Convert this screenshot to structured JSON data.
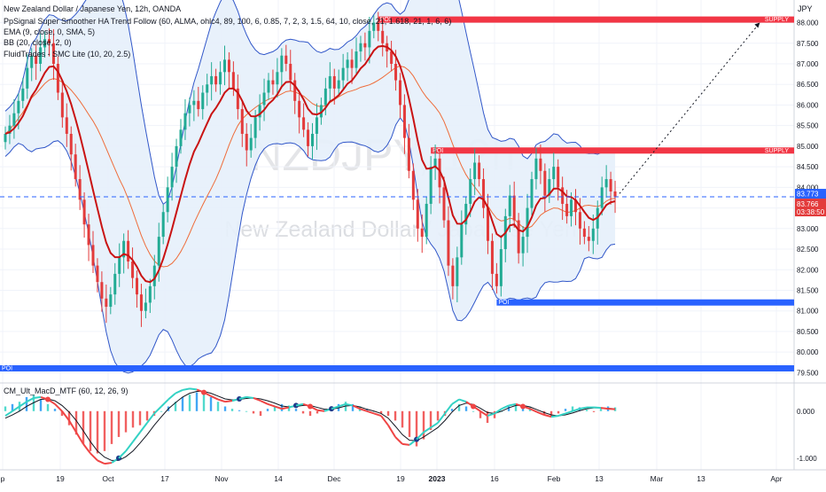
{
  "chart_data": {
    "type": "candlestick",
    "title": "New Zealand Dollar / Japanese Yen, 12h, OANDA",
    "watermark_symbol": "NZDJPY, 12h",
    "watermark_name": "New Zealand Dollar / Japanese Yen",
    "currency": "JPY",
    "indicators": [
      "PpSignal Super Smoother HA Trend Follow (60, ALMA, ohlc4, 89, 100, 6, 0.85, 7, 2, 3, 1.5, 64, 10, close, 21, 1.618, 21, 1, 6, 6)",
      "EMA (9, close, 0, SMA, 5)",
      "BB (20, close, 2, 0)",
      "FluidTrades - SMC Lite (10, 20, 2.5)"
    ],
    "price_axis_ticks": [
      88.0,
      87.5,
      87.0,
      86.5,
      86.0,
      85.5,
      85.0,
      84.5,
      84.0,
      83.5,
      83.0,
      82.5,
      82.0,
      81.5,
      81.0,
      80.5,
      80.0,
      79.5
    ],
    "price_axis_tick_labels": [
      "88.000",
      "87.500",
      "87.000",
      "86.500",
      "86.000",
      "85.500",
      "85.000",
      "84.500",
      "84.000",
      "83.500",
      "83.000",
      "82.500",
      "82.000",
      "81.500",
      "81.000",
      "80.500",
      "80.000",
      "79.500"
    ],
    "ylim": [
      79.25,
      88.55
    ],
    "date_axis_labels": [
      "p",
      "19",
      "Oct",
      "17",
      "Nov",
      "14",
      "Dec",
      "19",
      "2023",
      "16",
      "Feb",
      "13",
      "Mar",
      "13",
      "Apr"
    ],
    "last_price_label": "83.773",
    "current_price_label": "83.766",
    "countdown_label": "03:38:50",
    "zones": [
      {
        "label": "POI",
        "tag": "SUPPLY",
        "low": 88.05,
        "high": 88.15,
        "start_index": 85,
        "color": "#f23645"
      },
      {
        "label": "POI",
        "tag": "SUPPLY",
        "low": 84.85,
        "high": 84.97,
        "start_index": 97,
        "color": "#f23645"
      },
      {
        "label": "POI",
        "tag": "",
        "low": 81.15,
        "high": 81.28,
        "start_index": 112,
        "color": "#2962ff"
      },
      {
        "label": "POI",
        "tag": "",
        "low": 79.55,
        "high": 79.68,
        "start_index": 0,
        "color": "#2962ff"
      }
    ],
    "projection": {
      "from_index": 140,
      "from_price": 83.85,
      "to_index": 172,
      "to_price": 88.0
    },
    "ohlc_note": "values estimated from the chart",
    "closes": [
      85.3,
      85.5,
      85.8,
      86.1,
      86.4,
      86.9,
      87.2,
      87.0,
      87.4,
      87.6,
      87.5,
      87.0,
      86.3,
      85.7,
      85.3,
      84.8,
      84.2,
      83.7,
      83.1,
      82.6,
      82.1,
      81.7,
      81.3,
      81.1,
      81.4,
      81.9,
      82.3,
      82.7,
      82.2,
      81.8,
      81.4,
      81.0,
      81.2,
      81.6,
      82.1,
      82.8,
      83.4,
      84.0,
      84.5,
      85.0,
      85.4,
      85.8,
      86.0,
      86.1,
      85.9,
      86.3,
      86.5,
      86.7,
      86.5,
      86.8,
      87.1,
      86.8,
      86.4,
      85.9,
      85.3,
      84.9,
      85.2,
      85.7,
      86.0,
      86.3,
      86.6,
      86.5,
      86.8,
      87.2,
      87.0,
      86.6,
      86.1,
      85.7,
      85.4,
      85.0,
      85.3,
      85.7,
      86.0,
      86.4,
      86.7,
      86.4,
      86.6,
      86.9,
      87.1,
      86.9,
      87.3,
      87.5,
      87.4,
      87.8,
      88.0,
      87.8,
      87.5,
      87.3,
      87.0,
      86.6,
      86.0,
      85.2,
      84.4,
      83.7,
      83.0,
      82.8,
      83.6,
      84.5,
      84.7,
      84.0,
      83.2,
      82.1,
      81.6,
      82.3,
      83.1,
      83.6,
      84.2,
      84.6,
      84.2,
      83.5,
      82.7,
      81.9,
      81.6,
      82.5,
      83.3,
      83.8,
      83.2,
      82.4,
      82.8,
      83.5,
      84.2,
      84.7,
      84.4,
      83.8,
      84.2,
      84.5,
      84.0,
      83.6,
      83.3,
      83.7,
      83.4,
      83.0,
      82.8,
      82.7,
      83.0,
      83.5,
      84.0,
      84.2,
      83.9,
      83.77
    ],
    "macd_ticks": [
      0.0,
      -1.0
    ],
    "macd_tick_labels": [
      "0.000",
      "-1.000"
    ],
    "macd_ylim": [
      -1.25,
      0.6
    ],
    "macd_hist": [
      0.1,
      0.15,
      0.2,
      0.3,
      0.35,
      0.25,
      0.15,
      0.05,
      -0.1,
      -0.3,
      -0.5,
      -0.7,
      -0.85,
      -0.9,
      -0.85,
      -0.7,
      -0.55,
      -0.45,
      -0.35,
      -0.3,
      -0.2,
      -0.1,
      0.0,
      0.1,
      0.2,
      0.3,
      0.35,
      0.4,
      0.38,
      0.3,
      0.2,
      0.1,
      0.05,
      0.02,
      0.0,
      -0.05,
      -0.1,
      0.05,
      0.1,
      0.15,
      0.12,
      0.05,
      -0.05,
      -0.1,
      -0.05,
      0.03,
      0.1,
      0.15,
      0.2,
      0.15,
      0.1,
      0.05,
      0.0,
      -0.05,
      -0.1,
      -0.2,
      -0.35,
      -0.55,
      -0.75,
      -0.6,
      -0.4,
      -0.2,
      -0.1,
      0.05,
      0.15,
      0.1,
      0.0,
      -0.15,
      -0.25,
      -0.15,
      0.0,
      0.1,
      0.15,
      0.12,
      0.08,
      0.0,
      -0.08,
      -0.12,
      -0.05,
      0.05,
      0.1,
      0.08,
      0.03,
      -0.02,
      0.05,
      0.1,
      0.08
    ],
    "macd_line": [
      -0.1,
      0.0,
      0.1,
      0.2,
      0.28,
      0.3,
      0.25,
      0.15,
      0.0,
      -0.2,
      -0.45,
      -0.7,
      -0.9,
      -1.05,
      -1.12,
      -1.1,
      -1.0,
      -0.85,
      -0.65,
      -0.45,
      -0.25,
      -0.05,
      0.1,
      0.25,
      0.38,
      0.45,
      0.48,
      0.46,
      0.4,
      0.32,
      0.25,
      0.2,
      0.22,
      0.26,
      0.3,
      0.28,
      0.22,
      0.15,
      0.1,
      0.05,
      0.08,
      0.12,
      0.15,
      0.1,
      0.02,
      0.0,
      0.05,
      0.1,
      0.15,
      0.12,
      0.05,
      0.0,
      -0.05,
      -0.1,
      -0.3,
      -0.55,
      -0.7,
      -0.72,
      -0.6,
      -0.45,
      -0.35,
      -0.25,
      -0.05,
      0.15,
      0.25,
      0.2,
      0.1,
      0.0,
      -0.1,
      -0.05,
      0.05,
      0.12,
      0.15,
      0.1,
      0.05,
      -0.02,
      -0.08,
      -0.12,
      -0.1,
      -0.05,
      0.0,
      0.05,
      0.08,
      0.08,
      0.07,
      0.05,
      0.04
    ],
    "macd_signal": [
      -0.15,
      -0.08,
      0.0,
      0.1,
      0.18,
      0.25,
      0.26,
      0.22,
      0.12,
      -0.02,
      -0.2,
      -0.42,
      -0.65,
      -0.85,
      -0.98,
      -1.05,
      -1.05,
      -0.97,
      -0.85,
      -0.68,
      -0.5,
      -0.3,
      -0.12,
      0.05,
      0.18,
      0.3,
      0.38,
      0.42,
      0.42,
      0.38,
      0.32,
      0.26,
      0.24,
      0.25,
      0.27,
      0.28,
      0.26,
      0.22,
      0.17,
      0.11,
      0.09,
      0.1,
      0.12,
      0.12,
      0.08,
      0.04,
      0.04,
      0.07,
      0.11,
      0.12,
      0.09,
      0.04,
      0.0,
      -0.05,
      -0.15,
      -0.32,
      -0.5,
      -0.62,
      -0.63,
      -0.55,
      -0.45,
      -0.35,
      -0.2,
      -0.02,
      0.12,
      0.17,
      0.14,
      0.06,
      -0.03,
      -0.05,
      0.0,
      0.07,
      0.12,
      0.12,
      0.09,
      0.03,
      -0.03,
      -0.08,
      -0.1,
      -0.08,
      -0.04,
      0.01,
      0.05,
      0.07,
      0.07,
      0.06,
      0.05
    ],
    "macd_title": "CM_Ult_MacD_MTF (60, 12, 26, 9)"
  },
  "colors": {
    "up": "#22ab94",
    "down": "#e33b3b",
    "ema": "#c91313",
    "bb_fill": "#e5f0fb",
    "bb_line": "#3157c9",
    "basis": "#ef6c3a",
    "supply": "#f23645",
    "poi_blue": "#2962ff",
    "price_tag": "#2962ff",
    "current_tag": "#e33b3b",
    "macd_up": "#33d2c4",
    "macd_down": "#ef4444"
  }
}
